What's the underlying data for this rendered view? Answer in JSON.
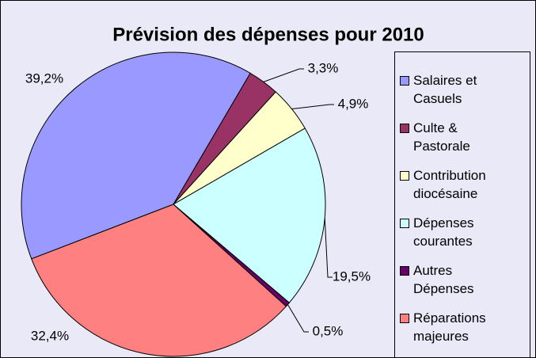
{
  "chart_data": {
    "type": "pie",
    "title": "Prévision des dépenses pour 2010",
    "categories": [
      "Salaires et Casuels",
      "Culte & Pastorale",
      "Contribution diocésaine",
      "Dépenses courantes",
      "Autres Dépenses",
      "Réparations majeures"
    ],
    "values": [
      39.2,
      3.3,
      4.9,
      19.5,
      0.5,
      32.4
    ],
    "value_labels": [
      "39,2%",
      "3,3%",
      "4,9%",
      "19,5%",
      "0,5%",
      "32,4%"
    ],
    "colors": [
      "#9999ff",
      "#993366",
      "#ffffcc",
      "#ccffff",
      "#660066",
      "#ff8080"
    ],
    "legend": "right"
  }
}
